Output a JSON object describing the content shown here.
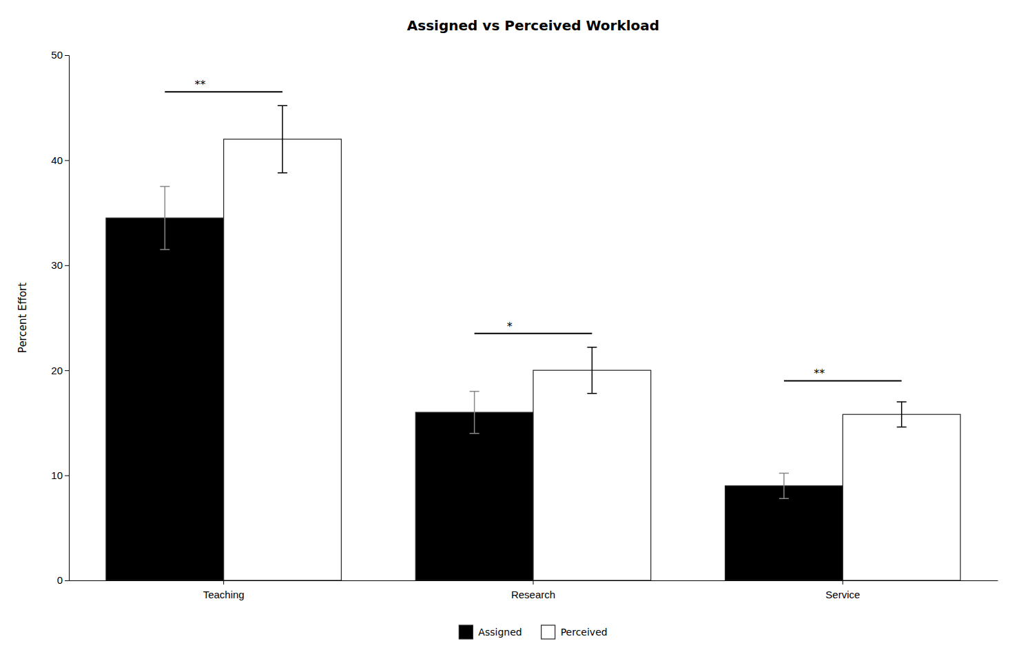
{
  "chart_data": {
    "type": "bar",
    "title": "Assigned vs Perceived Workload",
    "categories": [
      "Teaching",
      "Research",
      "Service"
    ],
    "series": [
      {
        "name": "Assigned",
        "color": "#000000",
        "values": [
          34.5,
          16.0,
          9.0
        ],
        "errors": [
          3.0,
          2.0,
          1.2
        ]
      },
      {
        "name": "Perceived",
        "color": "#ffffff",
        "values": [
          42.0,
          20.0,
          15.8
        ],
        "errors": [
          3.2,
          2.2,
          1.2
        ]
      }
    ],
    "ylabel": "Percent Effort",
    "ylim": [
      0,
      50
    ],
    "yticks": [
      0,
      10,
      20,
      30,
      40,
      50
    ],
    "annotations": [
      {
        "text": "**",
        "category": "Teaching",
        "y": 46.5
      },
      {
        "text": "*",
        "category": "Research",
        "y": 23.5
      },
      {
        "text": "**",
        "category": "Service",
        "y": 19.0
      }
    ],
    "legend": "bottom",
    "grid": false
  }
}
